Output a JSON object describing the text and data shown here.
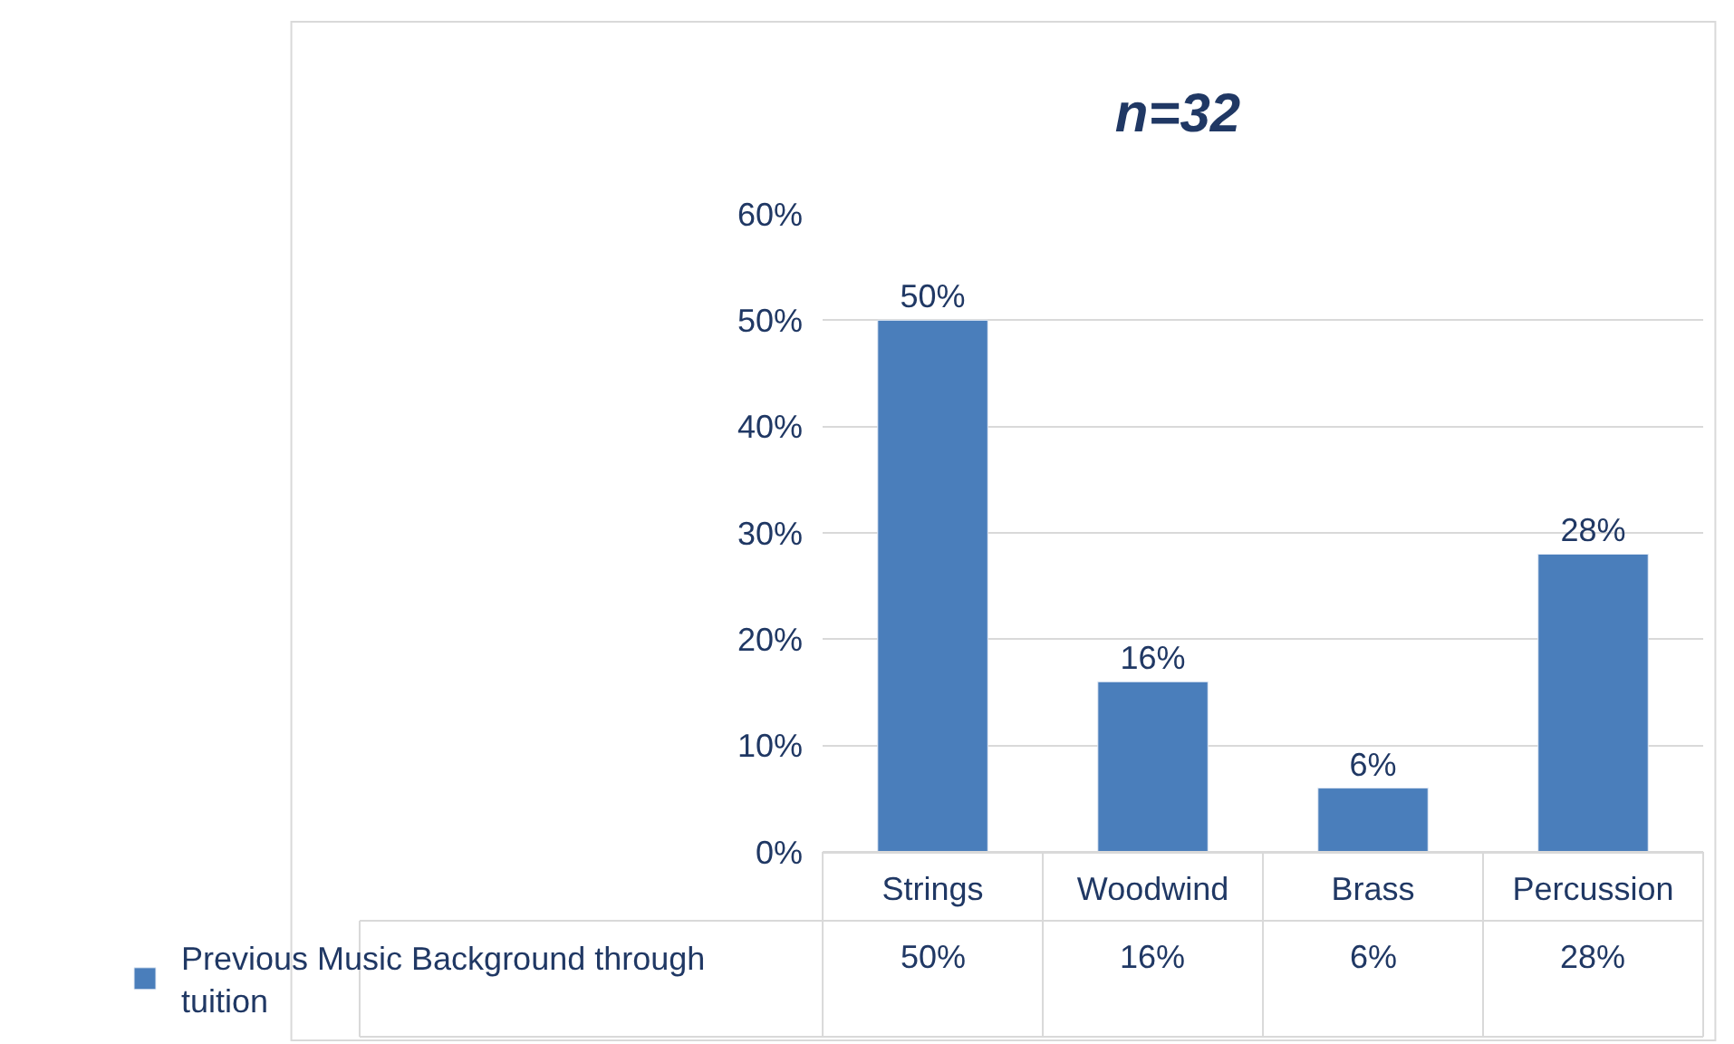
{
  "chart_data": {
    "type": "bar",
    "title": "n=32",
    "categories": [
      "Strings",
      "Woodwind",
      "Brass",
      "Percussion"
    ],
    "series": [
      {
        "name": "Previous Music Background through tuition",
        "color": "#4a7ebb",
        "values": [
          50,
          16,
          6,
          28
        ],
        "value_labels": [
          "50%",
          "16%",
          "6%",
          "28%"
        ]
      }
    ],
    "ylim": [
      0,
      60
    ],
    "yticks": [
      {
        "value": 0,
        "label": "0%"
      },
      {
        "value": 10,
        "label": "10%"
      },
      {
        "value": 20,
        "label": "20%"
      },
      {
        "value": 30,
        "label": "30%"
      },
      {
        "value": 40,
        "label": "40%"
      },
      {
        "value": 50,
        "label": "50%"
      },
      {
        "value": 60,
        "label": "60%"
      }
    ],
    "grid": "y",
    "legend": "bottom left"
  }
}
